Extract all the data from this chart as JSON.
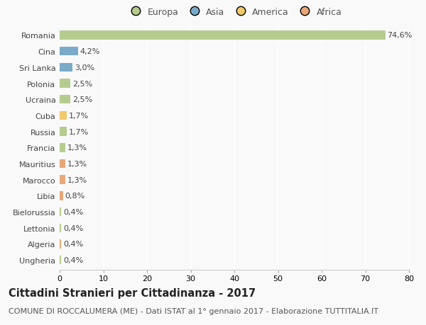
{
  "countries": [
    "Romania",
    "Cina",
    "Sri Lanka",
    "Polonia",
    "Ucraina",
    "Cuba",
    "Russia",
    "Francia",
    "Mauritius",
    "Marocco",
    "Libia",
    "Bielorussia",
    "Lettonia",
    "Algeria",
    "Ungheria"
  ],
  "values": [
    74.6,
    4.2,
    3.0,
    2.5,
    2.5,
    1.7,
    1.7,
    1.3,
    1.3,
    1.3,
    0.8,
    0.4,
    0.4,
    0.4,
    0.4
  ],
  "labels": [
    "74,6%",
    "4,2%",
    "3,0%",
    "2,5%",
    "2,5%",
    "1,7%",
    "1,7%",
    "1,3%",
    "1,3%",
    "1,3%",
    "0,8%",
    "0,4%",
    "0,4%",
    "0,4%",
    "0,4%"
  ],
  "continents": [
    "Europa",
    "Asia",
    "Asia",
    "Europa",
    "Europa",
    "America",
    "Europa",
    "Europa",
    "Africa",
    "Africa",
    "Africa",
    "Europa",
    "Europa",
    "Africa",
    "Europa"
  ],
  "colors": {
    "Europa": "#b5cc8e",
    "Asia": "#7aaac8",
    "America": "#f0c96a",
    "Africa": "#e8a878"
  },
  "legend_order": [
    "Europa",
    "Asia",
    "America",
    "Africa"
  ],
  "xlim": [
    0,
    80
  ],
  "xticks": [
    0,
    10,
    20,
    30,
    40,
    50,
    60,
    70,
    80
  ],
  "title": "Cittadini Stranieri per Cittadinanza - 2017",
  "subtitle": "COMUNE DI ROCCALUMERA (ME) - Dati ISTAT al 1° gennaio 2017 - Elaborazione TUTTITALIA.IT",
  "bg_color": "#f9f9f9",
  "plot_bg_color": "#f9f9f9",
  "grid_color": "#ffffff",
  "bar_height": 0.55,
  "title_fontsize": 10.5,
  "subtitle_fontsize": 8,
  "label_fontsize": 8,
  "ytick_fontsize": 8,
  "xtick_fontsize": 8,
  "legend_fontsize": 9
}
